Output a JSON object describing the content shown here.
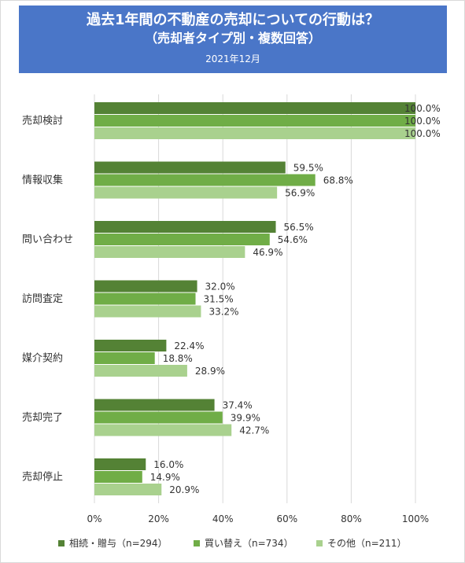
{
  "header": {
    "title": "過去1年間の不動産の売却についての行動は？",
    "subtitle": "（売却者タイプ別・複数回答）",
    "date": "2021年12月"
  },
  "colors": {
    "header_bg": "#4a76c8",
    "series": [
      "#548235",
      "#70ad47",
      "#a9d18e"
    ],
    "grid": "#d9d9d9",
    "text": "#333333"
  },
  "chart_data": {
    "type": "bar",
    "orientation": "horizontal",
    "title": "過去1年間の不動産の売却についての行動は？",
    "categories": [
      "売却検討",
      "情報収集",
      "問い合わせ",
      "訪問査定",
      "媒介契約",
      "売却完了",
      "売却停止"
    ],
    "series": [
      {
        "name": "相続・贈与（n=294）",
        "values": [
          100.0,
          59.5,
          56.5,
          32.0,
          22.4,
          37.4,
          16.0
        ]
      },
      {
        "name": "買い替え（n=734）",
        "values": [
          100.0,
          68.8,
          54.6,
          31.5,
          18.8,
          39.9,
          14.9
        ]
      },
      {
        "name": "その他（n=211）",
        "values": [
          100.0,
          56.9,
          46.9,
          33.2,
          28.9,
          42.7,
          20.9
        ]
      }
    ],
    "xlim": [
      0,
      100
    ],
    "x_ticks": [
      "0%",
      "20%",
      "40%",
      "60%",
      "80%",
      "100%"
    ],
    "data_label_suffix": "%",
    "grid": true,
    "legend_position": "bottom"
  }
}
